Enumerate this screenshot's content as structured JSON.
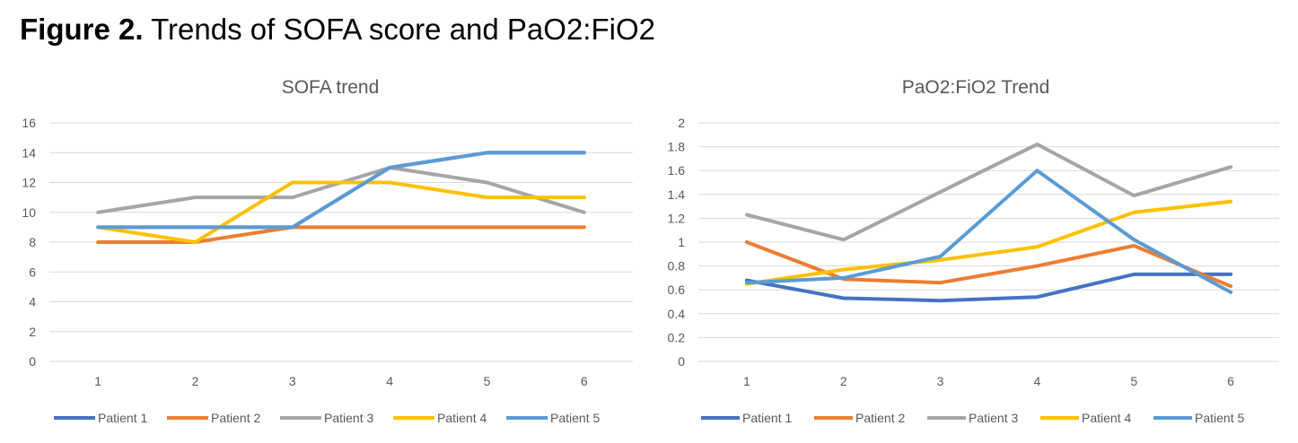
{
  "figure": {
    "label": "Figure 2.",
    "title": "Trends of SOFA score and PaO2:FiO2"
  },
  "chart_data": [
    {
      "type": "line",
      "title": "SOFA trend",
      "xlabel": "",
      "ylabel": "",
      "x": [
        1,
        2,
        3,
        4,
        5,
        6
      ],
      "ylim": [
        0,
        16
      ],
      "yticks": [
        0,
        2,
        4,
        6,
        8,
        10,
        12,
        14,
        16
      ],
      "grid": true,
      "legend": "bottom",
      "series": [
        {
          "name": "Patient 1",
          "color": "#4472C4",
          "values": [
            9,
            9,
            9,
            13,
            14,
            14
          ]
        },
        {
          "name": "Patient 2",
          "color": "#ED7D31",
          "values": [
            8,
            8,
            9,
            9,
            9,
            9
          ]
        },
        {
          "name": "Patient 3",
          "color": "#A5A5A5",
          "values": [
            10,
            11,
            11,
            13,
            12,
            10
          ]
        },
        {
          "name": "Patient 4",
          "color": "#FFC000",
          "values": [
            9,
            8,
            12,
            12,
            11,
            11
          ]
        },
        {
          "name": "Patient 5",
          "color": "#5B9BD5",
          "values": [
            9,
            9,
            9,
            13,
            14,
            14
          ]
        }
      ]
    },
    {
      "type": "line",
      "title": "PaO2:FiO2 Trend",
      "xlabel": "",
      "ylabel": "",
      "x": [
        1,
        2,
        3,
        4,
        5,
        6
      ],
      "ylim": [
        0,
        2
      ],
      "yticks": [
        "0",
        "0.2",
        "0.4",
        "0.6",
        "0.8",
        "1",
        "1.2",
        "1.4",
        "1.6",
        "1.8",
        "2"
      ],
      "grid": true,
      "legend": "bottom",
      "series": [
        {
          "name": "Patient 1",
          "color": "#4472C4",
          "values": [
            0.68,
            0.53,
            0.51,
            0.54,
            0.73,
            0.73
          ]
        },
        {
          "name": "Patient 2",
          "color": "#ED7D31",
          "values": [
            1.0,
            0.69,
            0.66,
            0.8,
            0.97,
            0.63
          ]
        },
        {
          "name": "Patient 3",
          "color": "#A5A5A5",
          "values": [
            1.23,
            1.02,
            1.42,
            1.82,
            1.39,
            1.63
          ]
        },
        {
          "name": "Patient 4",
          "color": "#FFC000",
          "values": [
            0.65,
            0.77,
            0.85,
            0.96,
            1.25,
            1.34
          ]
        },
        {
          "name": "Patient 5",
          "color": "#5B9BD5",
          "values": [
            0.66,
            0.7,
            0.88,
            1.6,
            1.02,
            0.58
          ]
        }
      ]
    }
  ]
}
